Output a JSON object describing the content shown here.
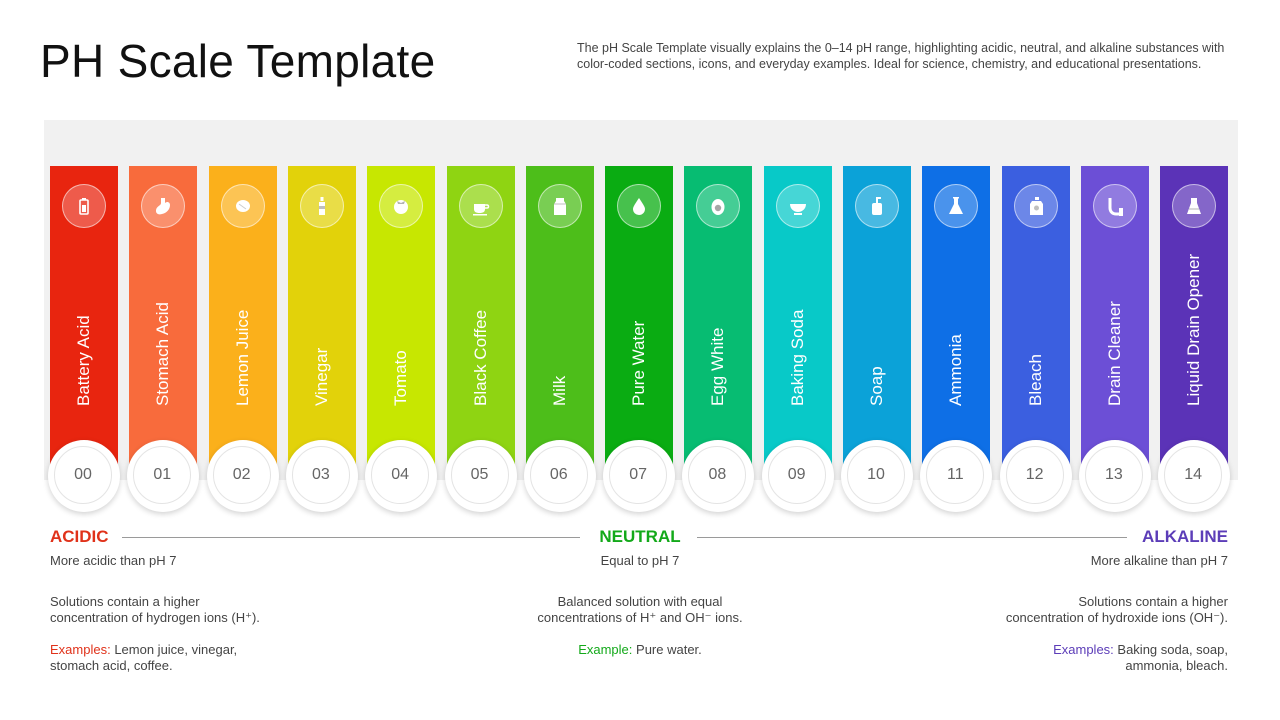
{
  "title": "PH Scale Template",
  "description": "The pH Scale Template visually explains the 0–14 pH range, highlighting acidic, neutral, and alkaline substances with color-coded sections, icons, and everyday examples. Ideal for science, chemistry, and educational presentations.",
  "scale": [
    {
      "num": "00",
      "label": "Battery Acid",
      "color": "#e8250f",
      "icon": "battery-icon"
    },
    {
      "num": "01",
      "label": "Stomach Acid",
      "color": "#f86b3c",
      "icon": "stomach-icon"
    },
    {
      "num": "02",
      "label": "Lemon Juice",
      "color": "#fbb01b",
      "icon": "lemon-icon"
    },
    {
      "num": "03",
      "label": "Vinegar",
      "color": "#e2d20a",
      "icon": "bottle-icon"
    },
    {
      "num": "04",
      "label": "Tomato",
      "color": "#c7e701",
      "icon": "tomato-icon"
    },
    {
      "num": "05",
      "label": "Black Coffee",
      "color": "#8fd412",
      "icon": "coffee-cup-icon"
    },
    {
      "num": "06",
      "label": "Milk",
      "color": "#4dbe1a",
      "icon": "milk-carton-icon"
    },
    {
      "num": "07",
      "label": "Pure Water",
      "color": "#0aac12",
      "icon": "water-drop-icon"
    },
    {
      "num": "08",
      "label": "Egg White",
      "color": "#07bc72",
      "icon": "egg-icon"
    },
    {
      "num": "09",
      "label": "Baking Soda",
      "color": "#08c9c8",
      "icon": "bowl-icon"
    },
    {
      "num": "10",
      "label": "Soap",
      "color": "#0ba2d8",
      "icon": "soap-dispenser-icon"
    },
    {
      "num": "11",
      "label": "Ammonia",
      "color": "#0e6fe6",
      "icon": "flask-icon"
    },
    {
      "num": "12",
      "label": "Bleach",
      "color": "#3b5fe0",
      "icon": "bleach-bottle-icon"
    },
    {
      "num": "13",
      "label": "Drain Cleaner",
      "color": "#6c4fd6",
      "icon": "pipe-icon"
    },
    {
      "num": "14",
      "label": "Liquid Drain Opener",
      "color": "#5b33b7",
      "icon": "beaker-icon"
    }
  ],
  "acidic": {
    "heading": "ACIDIC",
    "color": "#e0321a",
    "sub": "More acidic than pH 7",
    "para_line1": "Solutions contain a higher",
    "para_line2": "concentration of hydrogen ions (H⁺).",
    "example_label": "Examples:",
    "example_line1": " Lemon juice, vinegar,",
    "example_line2": "stomach acid, coffee."
  },
  "neutral": {
    "heading": "NEUTRAL",
    "color": "#13a91a",
    "sub": "Equal to pH 7",
    "para_line1": "Balanced solution with equal",
    "para_line2": "concentrations of H⁺ and OH⁻ ions.",
    "example_label": "Example:",
    "example_line1": " Pure water."
  },
  "alkaline": {
    "heading": "ALKALINE",
    "color": "#5c3db8",
    "sub": "More alkaline than pH 7",
    "para_line1": "Solutions contain a higher",
    "para_line2": "concentration of hydroxide ions (OH⁻).",
    "example_label": "Examples:",
    "example_line1": " Baking soda, soap,",
    "example_line2": "ammonia, bleach."
  }
}
